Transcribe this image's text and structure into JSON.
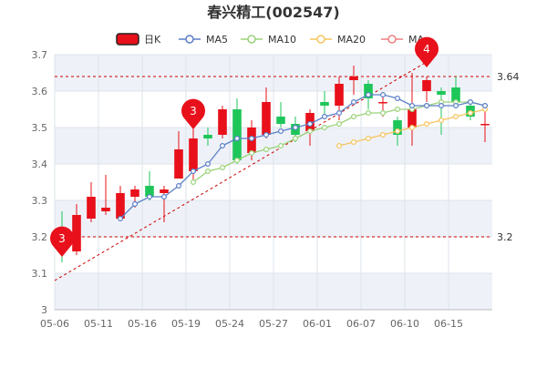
{
  "chart_data": {
    "type": "candlestick",
    "title": "春兴精工(002547)",
    "colors": {
      "up": "#e8101a",
      "down": "#1ec65a",
      "ma5": "#5b7fc7",
      "ma10": "#9bd27a",
      "ma20": "#f5c45c",
      "ma_hidden": "#f08080",
      "ref_line": "#cc0000",
      "pin": "#e8101a",
      "grid": "#dde3ea",
      "band": "#eef2f8"
    },
    "legend": [
      {
        "key": "kline",
        "label": "日K"
      },
      {
        "key": "ma5",
        "label": "MA5"
      },
      {
        "key": "ma10",
        "label": "MA10"
      },
      {
        "key": "ma20",
        "label": "MA20"
      },
      {
        "key": "ma_hidden",
        "label": "MA"
      }
    ],
    "y_axis": {
      "min": 3.0,
      "max": 3.7,
      "ticks": [
        "3",
        "3.1",
        "3.2",
        "3.3",
        "3.4",
        "3.5",
        "3.6",
        "3.7"
      ]
    },
    "x_ticks": [
      {
        "index": 0,
        "label": "05-06"
      },
      {
        "index": 3,
        "label": "05-11"
      },
      {
        "index": 6,
        "label": "05-16"
      },
      {
        "index": 9,
        "label": "05-19"
      },
      {
        "index": 12,
        "label": "05-24"
      },
      {
        "index": 15,
        "label": "05-27"
      },
      {
        "index": 18,
        "label": "06-01"
      },
      {
        "index": 21,
        "label": "06-07"
      },
      {
        "index": 24,
        "label": "06-10"
      },
      {
        "index": 27,
        "label": "06-15"
      }
    ],
    "candles": [
      {
        "o": 3.2,
        "c": 3.17,
        "h": 3.27,
        "l": 3.13
      },
      {
        "o": 3.16,
        "c": 3.26,
        "h": 3.29,
        "l": 3.15
      },
      {
        "o": 3.25,
        "c": 3.31,
        "h": 3.35,
        "l": 3.24
      },
      {
        "o": 3.27,
        "c": 3.28,
        "h": 3.37,
        "l": 3.26
      },
      {
        "o": 3.25,
        "c": 3.32,
        "h": 3.34,
        "l": 3.25
      },
      {
        "o": 3.31,
        "c": 3.33,
        "h": 3.34,
        "l": 3.28
      },
      {
        "o": 3.34,
        "c": 3.31,
        "h": 3.38,
        "l": 3.3
      },
      {
        "o": 3.32,
        "c": 3.33,
        "h": 3.34,
        "l": 3.24
      },
      {
        "o": 3.36,
        "c": 3.44,
        "h": 3.49,
        "l": 3.36
      },
      {
        "o": 3.38,
        "c": 3.47,
        "h": 3.5,
        "l": 3.35
      },
      {
        "o": 3.48,
        "c": 3.47,
        "h": 3.5,
        "l": 3.45
      },
      {
        "o": 3.48,
        "c": 3.55,
        "h": 3.56,
        "l": 3.47
      },
      {
        "o": 3.55,
        "c": 3.41,
        "h": 3.58,
        "l": 3.4
      },
      {
        "o": 3.43,
        "c": 3.5,
        "h": 3.52,
        "l": 3.41
      },
      {
        "o": 3.48,
        "c": 3.57,
        "h": 3.61,
        "l": 3.47
      },
      {
        "o": 3.53,
        "c": 3.51,
        "h": 3.57,
        "l": 3.5
      },
      {
        "o": 3.51,
        "c": 3.48,
        "h": 3.53,
        "l": 3.46
      },
      {
        "o": 3.49,
        "c": 3.54,
        "h": 3.55,
        "l": 3.45
      },
      {
        "o": 3.57,
        "c": 3.56,
        "h": 3.6,
        "l": 3.53
      },
      {
        "o": 3.56,
        "c": 3.62,
        "h": 3.64,
        "l": 3.52
      },
      {
        "o": 3.63,
        "c": 3.64,
        "h": 3.67,
        "l": 3.59
      },
      {
        "o": 3.62,
        "c": 3.58,
        "h": 3.63,
        "l": 3.55
      },
      {
        "o": 3.57,
        "c": 3.57,
        "h": 3.59,
        "l": 3.53
      },
      {
        "o": 3.52,
        "c": 3.48,
        "h": 3.53,
        "l": 3.45
      },
      {
        "o": 3.5,
        "c": 3.55,
        "h": 3.65,
        "l": 3.45
      },
      {
        "o": 3.6,
        "c": 3.63,
        "h": 3.64,
        "l": 3.57
      },
      {
        "o": 3.6,
        "c": 3.59,
        "h": 3.61,
        "l": 3.48
      },
      {
        "o": 3.61,
        "c": 3.57,
        "h": 3.64,
        "l": 3.56
      },
      {
        "o": 3.56,
        "c": 3.53,
        "h": 3.57,
        "l": 3.52
      },
      {
        "o": 3.51,
        "c": 3.51,
        "h": 3.55,
        "l": 3.46
      }
    ],
    "ma5": [
      null,
      null,
      null,
      null,
      3.25,
      3.29,
      3.31,
      3.31,
      3.34,
      3.38,
      3.4,
      3.45,
      3.47,
      3.47,
      3.48,
      3.49,
      3.5,
      3.51,
      3.53,
      3.54,
      3.57,
      3.59,
      3.59,
      3.58,
      3.56,
      3.56,
      3.56,
      3.56,
      3.57,
      3.56
    ],
    "ma10": [
      null,
      null,
      null,
      null,
      null,
      null,
      null,
      null,
      null,
      3.35,
      3.38,
      3.39,
      3.41,
      3.43,
      3.44,
      3.45,
      3.47,
      3.49,
      3.5,
      3.51,
      3.53,
      3.54,
      3.54,
      3.55,
      3.55,
      3.56,
      3.57,
      3.57,
      3.57,
      3.56
    ],
    "ma20": [
      null,
      null,
      null,
      null,
      null,
      null,
      null,
      null,
      null,
      null,
      null,
      null,
      null,
      null,
      null,
      null,
      null,
      null,
      null,
      3.45,
      3.46,
      3.47,
      3.48,
      3.49,
      3.5,
      3.51,
      3.52,
      3.53,
      3.54,
      3.55
    ],
    "reference_lines": [
      {
        "value": 3.64,
        "label": "3.64"
      },
      {
        "value": 3.2,
        "label": "3.2"
      }
    ],
    "trend_line": {
      "from": {
        "index": 0,
        "value": 3.08
      },
      "to": {
        "index": 25,
        "value": 3.68
      }
    },
    "markers": [
      {
        "label": "3",
        "index": 0,
        "value": 3.14
      },
      {
        "label": "3",
        "index": 9,
        "value": 3.49
      },
      {
        "label": "4",
        "index": 25,
        "value": 3.66
      }
    ]
  }
}
